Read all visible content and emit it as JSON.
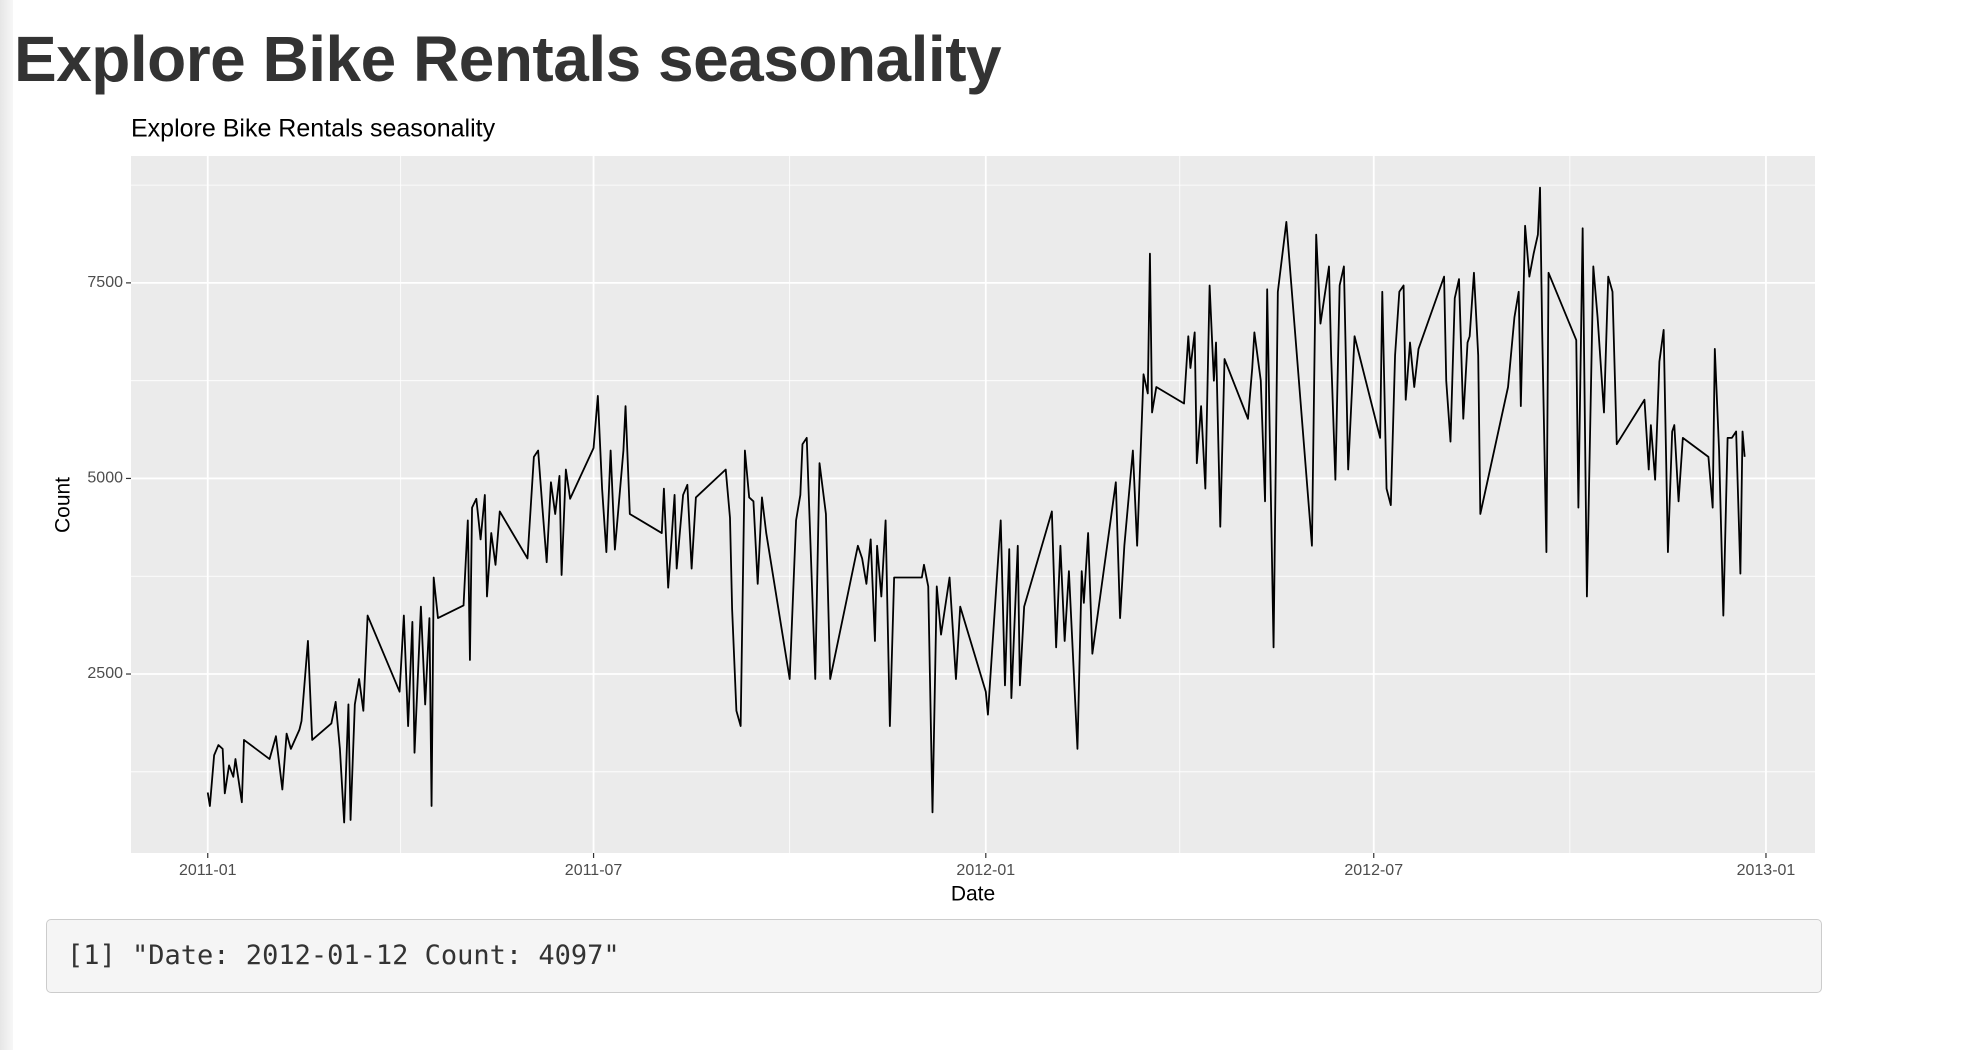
{
  "page_title": "Explore Bike Rentals seasonality",
  "console_output": "[1] \"Date: 2012-01-12 Count: 4097\"",
  "chart_data": {
    "type": "line",
    "title": "Explore Bike Rentals seasonality",
    "x_label": "Date",
    "y_label": "Count",
    "color": "#000000",
    "grid": true,
    "xlim": [
      "2010-11-26",
      "2013-01-24"
    ],
    "ylim": [
      212,
      9122
    ],
    "xticks": [
      {
        "value": "2011-01-01",
        "label": "2011-01"
      },
      {
        "value": "2011-07-01",
        "label": "2011-07"
      },
      {
        "value": "2012-01-01",
        "label": "2012-01"
      },
      {
        "value": "2012-07-01",
        "label": "2012-07"
      },
      {
        "value": "2013-01-01",
        "label": "2013-01"
      }
    ],
    "yticks": [
      2500,
      5000,
      7500
    ],
    "x": [
      "2011-01-01",
      "2011-01-02",
      "2011-01-04",
      "2011-01-06",
      "2011-01-08",
      "2011-01-09",
      "2011-01-11",
      "2011-01-13",
      "2011-01-14",
      "2011-01-17",
      "2011-01-18",
      "2011-01-30",
      "2011-02-02",
      "2011-02-05",
      "2011-02-07",
      "2011-02-09",
      "2011-02-13",
      "2011-02-14",
      "2011-02-17",
      "2011-02-19",
      "2011-02-28",
      "2011-03-02",
      "2011-03-04",
      "2011-03-06",
      "2011-03-08",
      "2011-03-09",
      "2011-03-11",
      "2011-03-13",
      "2011-03-15",
      "2011-03-17",
      "2011-04-01",
      "2011-04-03",
      "2011-04-05",
      "2011-04-07",
      "2011-04-08",
      "2011-04-11",
      "2011-04-13",
      "2011-04-15",
      "2011-04-16",
      "2011-04-17",
      "2011-04-19",
      "2011-05-01",
      "2011-05-03",
      "2011-05-04",
      "2011-05-05",
      "2011-05-07",
      "2011-05-09",
      "2011-05-11",
      "2011-05-12",
      "2011-05-14",
      "2011-05-16",
      "2011-05-18",
      "2011-05-31",
      "2011-06-03",
      "2011-06-05",
      "2011-06-07",
      "2011-06-09",
      "2011-06-11",
      "2011-06-13",
      "2011-06-15",
      "2011-06-16",
      "2011-06-18",
      "2011-06-20",
      "2011-07-01",
      "2011-07-03",
      "2011-07-05",
      "2011-07-07",
      "2011-07-09",
      "2011-07-11",
      "2011-07-15",
      "2011-07-16",
      "2011-07-18",
      "2011-08-02",
      "2011-08-03",
      "2011-08-05",
      "2011-08-08",
      "2011-08-09",
      "2011-08-12",
      "2011-08-14",
      "2011-08-16",
      "2011-08-18",
      "2011-09-01",
      "2011-09-03",
      "2011-09-04",
      "2011-09-06",
      "2011-09-08",
      "2011-09-10",
      "2011-09-12",
      "2011-09-14",
      "2011-09-16",
      "2011-09-18",
      "2011-09-20",
      "2011-10-01",
      "2011-10-04",
      "2011-10-06",
      "2011-10-07",
      "2011-10-09",
      "2011-10-13",
      "2011-10-15",
      "2011-10-18",
      "2011-10-20",
      "2011-11-02",
      "2011-11-04",
      "2011-11-06",
      "2011-11-08",
      "2011-11-10",
      "2011-11-11",
      "2011-11-13",
      "2011-11-15",
      "2011-11-17",
      "2011-11-19",
      "2011-12-02",
      "2011-12-03",
      "2011-12-05",
      "2011-12-07",
      "2011-12-09",
      "2011-12-11",
      "2011-12-15",
      "2011-12-18",
      "2011-12-20",
      "2012-01-01",
      "2012-01-02",
      "2012-01-07",
      "2012-01-08",
      "2012-01-10",
      "2012-01-12",
      "2012-01-13",
      "2012-01-16",
      "2012-01-17",
      "2012-01-19",
      "2012-02-01",
      "2012-02-03",
      "2012-02-05",
      "2012-02-07",
      "2012-02-09",
      "2012-02-13",
      "2012-02-15",
      "2012-02-16",
      "2012-02-18",
      "2012-02-20",
      "2012-03-02",
      "2012-03-04",
      "2012-03-06",
      "2012-03-10",
      "2012-03-12",
      "2012-03-15",
      "2012-03-17",
      "2012-03-18",
      "2012-03-19",
      "2012-03-21",
      "2012-04-03",
      "2012-04-05",
      "2012-04-06",
      "2012-04-08",
      "2012-04-09",
      "2012-04-11",
      "2012-04-13",
      "2012-04-15",
      "2012-04-17",
      "2012-04-18",
      "2012-04-20",
      "2012-04-22",
      "2012-05-03",
      "2012-05-05",
      "2012-05-06",
      "2012-05-09",
      "2012-05-11",
      "2012-05-12",
      "2012-05-15",
      "2012-05-17",
      "2012-05-21",
      "2012-06-02",
      "2012-06-04",
      "2012-06-06",
      "2012-06-10",
      "2012-06-11",
      "2012-06-13",
      "2012-06-15",
      "2012-06-17",
      "2012-06-19",
      "2012-06-22",
      "2012-07-04",
      "2012-07-05",
      "2012-07-07",
      "2012-07-09",
      "2012-07-11",
      "2012-07-13",
      "2012-07-15",
      "2012-07-16",
      "2012-07-18",
      "2012-07-20",
      "2012-07-22",
      "2012-08-03",
      "2012-08-04",
      "2012-08-06",
      "2012-08-08",
      "2012-08-10",
      "2012-08-12",
      "2012-08-14",
      "2012-08-15",
      "2012-08-17",
      "2012-08-19",
      "2012-08-20",
      "2012-09-02",
      "2012-09-05",
      "2012-09-07",
      "2012-09-08",
      "2012-09-10",
      "2012-09-12",
      "2012-09-14",
      "2012-09-16",
      "2012-09-17",
      "2012-09-18",
      "2012-09-20",
      "2012-09-21",
      "2012-10-04",
      "2012-10-05",
      "2012-10-07",
      "2012-10-09",
      "2012-10-12",
      "2012-10-14",
      "2012-10-17",
      "2012-10-19",
      "2012-10-21",
      "2012-10-23",
      "2012-11-05",
      "2012-11-07",
      "2012-11-08",
      "2012-11-10",
      "2012-11-12",
      "2012-11-14",
      "2012-11-16",
      "2012-11-18",
      "2012-11-19",
      "2012-11-21",
      "2012-11-23",
      "2012-12-05",
      "2012-12-07",
      "2012-12-08",
      "2012-12-10",
      "2012-12-12",
      "2012-12-14",
      "2012-12-16",
      "2012-12-18",
      "2012-12-20",
      "2012-12-21",
      "2012-12-22"
    ],
    "values": [
      985,
      813,
      1462,
      1592,
      1543,
      975,
      1332,
      1186,
      1413,
      861,
      1657,
      1413,
      1705,
      1024,
      1738,
      1543,
      1787,
      1900,
      2923,
      1657,
      1868,
      2144,
      1543,
      602,
      2111,
      634,
      2111,
      2436,
      2030,
      3247,
      2274,
      3247,
      1835,
      3166,
      1494,
      3361,
      2111,
      3215,
      813,
      3734,
      3215,
      3377,
      4464,
      2679,
      4627,
      4740,
      4221,
      4789,
      3491,
      4302,
      3896,
      4578,
      3977,
      5276,
      5357,
      4627,
      3929,
      4951,
      4546,
      5032,
      3766,
      5114,
      4740,
      5390,
      6055,
      4870,
      4059,
      5357,
      4091,
      5357,
      5925,
      4546,
      4302,
      4870,
      3604,
      4789,
      3848,
      4789,
      4919,
      3848,
      4757,
      5114,
      4497,
      3328,
      2030,
      1835,
      5357,
      4757,
      4708,
      3653,
      4757,
      4302,
      2436,
      4464,
      4789,
      5438,
      5519,
      2436,
      5195,
      4546,
      2436,
      4140,
      3977,
      3653,
      4221,
      2923,
      4140,
      3491,
      4464,
      1835,
      3734,
      3734,
      3896,
      3620,
      731,
      3620,
      3004,
      3734,
      2436,
      3361,
      2274,
      1981,
      4059,
      4464,
      2355,
      4097,
      2192,
      4140,
      2355,
      3361,
      4578,
      2841,
      4140,
      2923,
      3815,
      1543,
      3815,
      3410,
      4302,
      2760,
      4951,
      3215,
      4140,
      5357,
      4140,
      6331,
      6087,
      7873,
      5844,
      6169,
      5958,
      6818,
      6412,
      6867,
      5195,
      5925,
      4870,
      7467,
      6250,
      6737,
      4383,
      6526,
      5763,
      6412,
      6867,
      6250,
      4708,
      7418,
      2841,
      7386,
      8279,
      4140,
      8117,
      6980,
      7710,
      6574,
      4984,
      7467,
      7710,
      5114,
      6818,
      5519,
      7386,
      4870,
      4659,
      6574,
      7386,
      7467,
      6006,
      6737,
      6169,
      6656,
      7580,
      6250,
      5471,
      7304,
      7548,
      5763,
      6737,
      6818,
      7629,
      6574,
      4546,
      6169,
      7061,
      7386,
      5925,
      8230,
      7580,
      7873,
      8117,
      8717,
      6899,
      4059,
      7629,
      6769,
      4627,
      8198,
      3491,
      7710,
      7061,
      5844,
      7580,
      7386,
      5438,
      6006,
      5114,
      5682,
      4984,
      6493,
      6899,
      4059,
      5600,
      5682,
      4708,
      5519,
      5276,
      4627,
      6656,
      5357,
      3247,
      5519,
      5519,
      5600,
      3783,
      5600,
      5276
    ]
  }
}
